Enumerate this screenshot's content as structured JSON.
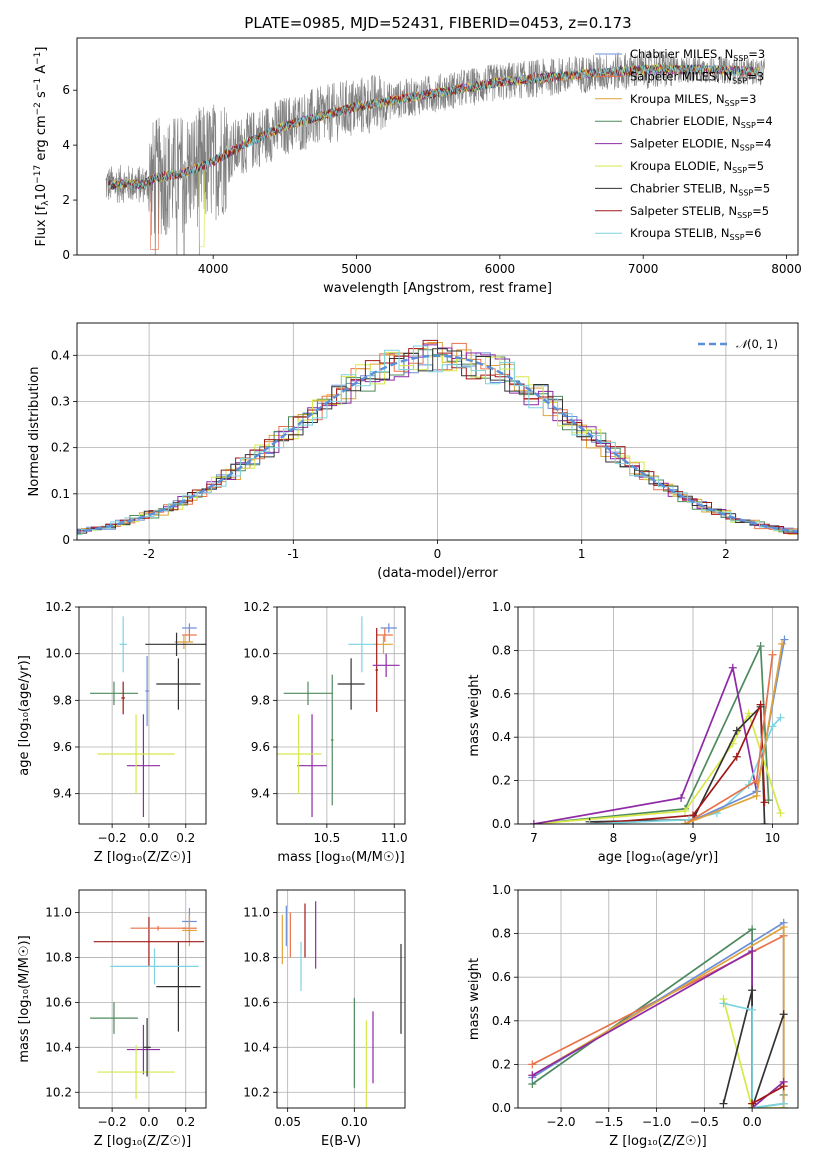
{
  "figure": {
    "title": "PLATE=0985, MJD=52431, FIBERID=0453, z=0.173"
  },
  "colors": {
    "Chabrier MILES": "#6b8fd8",
    "Salpeter MILES": "#e8734a",
    "Kroupa MILES": "#e0a23a",
    "Chabrier ELODIE": "#4e8a5e",
    "Salpeter ELODIE": "#8e2aa5",
    "Kroupa ELODIE": "#d7e84a",
    "Chabrier STELIB": "#333333",
    "Salpeter STELIB": "#a01818",
    "Kroupa STELIB": "#7ed3e0",
    "data": "#808080",
    "gaussian": "#5b8fd9"
  },
  "legend": [
    {
      "prefix": "Chabrier MILES, N",
      "sub": "SSP",
      "suffix": "=3",
      "key": "Chabrier MILES"
    },
    {
      "prefix": "Salpeter MILES, N",
      "sub": "SSP",
      "suffix": "=3",
      "key": "Salpeter MILES"
    },
    {
      "prefix": "Kroupa MILES, N",
      "sub": "SSP",
      "suffix": "=3",
      "key": "Kroupa MILES"
    },
    {
      "prefix": "Chabrier ELODIE, N",
      "sub": "SSP",
      "suffix": "=4",
      "key": "Chabrier ELODIE"
    },
    {
      "prefix": "Salpeter ELODIE, N",
      "sub": "SSP",
      "suffix": "=4",
      "key": "Salpeter ELODIE"
    },
    {
      "prefix": "Kroupa ELODIE, N",
      "sub": "SSP",
      "suffix": "=5",
      "key": "Kroupa ELODIE"
    },
    {
      "prefix": "Chabrier STELIB, N",
      "sub": "SSP",
      "suffix": "=5",
      "key": "Chabrier STELIB"
    },
    {
      "prefix": "Salpeter STELIB, N",
      "sub": "SSP",
      "suffix": "=5",
      "key": "Salpeter STELIB"
    },
    {
      "prefix": "Kroupa STELIB, N",
      "sub": "SSP",
      "suffix": "=6",
      "key": "Kroupa STELIB"
    }
  ],
  "chart_data": [
    {
      "type": "line",
      "id": "spectrum",
      "xlabel": "wavelength [Angstrom, rest frame]",
      "ylabel_prefix": "Flux [f",
      "ylabel_sub": "λ",
      "ylabel_mid": "10",
      "ylabel_sup1": "−17",
      "ylabel_rest": " erg cm",
      "ylabel_sup2": "−2",
      "ylabel_rest2": " s",
      "ylabel_sup3": "−1",
      "ylabel_end": " A",
      "ylabel_sup4": "−1",
      "ylabel_close": "]",
      "xlim": [
        3050,
        8080
      ],
      "ylim": [
        0,
        7.9
      ],
      "xticks": [
        4000,
        5000,
        6000,
        7000,
        8000
      ],
      "yticks": [
        0,
        2,
        4,
        6
      ],
      "x_range": [
        3250,
        7850
      ],
      "continuum": [
        [
          3250,
          2.55
        ],
        [
          3400,
          2.6
        ],
        [
          3500,
          2.55
        ],
        [
          3600,
          2.8
        ],
        [
          3800,
          3.0
        ],
        [
          4000,
          3.4
        ],
        [
          4200,
          4.0
        ],
        [
          4500,
          4.7
        ],
        [
          5000,
          5.4
        ],
        [
          5500,
          5.85
        ],
        [
          6000,
          6.3
        ],
        [
          6500,
          6.55
        ],
        [
          7000,
          6.75
        ],
        [
          7500,
          6.75
        ],
        [
          7850,
          6.65
        ]
      ],
      "legend_loc": "upper right"
    },
    {
      "type": "line",
      "id": "residuals",
      "xlabel": "(data-model)/error",
      "ylabel": "Normed distribution",
      "xlim": [
        -2.5,
        2.5
      ],
      "ylim": [
        0,
        0.47
      ],
      "xticks": [
        -2,
        -1,
        0,
        1,
        2
      ],
      "yticks": [
        0.0,
        0.1,
        0.2,
        0.3,
        0.4
      ],
      "gaussian_label_pre": "𝒩",
      "gaussian_label_args": "(0, 1)",
      "legend_loc": "upper right"
    },
    {
      "type": "scatter",
      "id": "age_vs_Z",
      "xlabel": "Z [log₁₀(Z/Z☉)]",
      "ylabel": "age  [log₁₀(age/yr)]",
      "xlim": [
        -0.38,
        0.31
      ],
      "ylim": [
        9.27,
        10.2
      ],
      "xticks": [
        -0.2,
        0.0,
        0.2
      ],
      "xticklabels": [
        "−0.2",
        "0.0",
        "0.2"
      ],
      "yticks": [
        9.4,
        9.6,
        9.8,
        10.0,
        10.2
      ],
      "yticklabels": [
        "9.4",
        "9.6",
        "9.8",
        "10.0",
        "10.2"
      ],
      "points": [
        {
          "key": "Chabrier MILES",
          "x": 0.22,
          "y": 10.11,
          "xerr": 0.04,
          "yerr": 0.02
        },
        {
          "key": "Salpeter MILES",
          "x": 0.22,
          "y": 10.08,
          "xerr": 0.04,
          "yerr": 0.03
        },
        {
          "key": "Kroupa MILES",
          "x": 0.19,
          "y": 10.05,
          "xerr": 0.05,
          "yerr": 0.03
        },
        {
          "key": "Chabrier ELODIE",
          "x": -0.19,
          "y": 9.83,
          "xerr": 0.13,
          "yerr": 0.05
        },
        {
          "key": "Salpeter ELODIE",
          "x": -0.03,
          "y": 9.52,
          "xerr": 0.09,
          "yerr": 0.22
        },
        {
          "key": "Kroupa ELODIE",
          "x": -0.07,
          "y": 9.57,
          "xerr": 0.21,
          "yerr": 0.17
        },
        {
          "key": "Chabrier STELIB",
          "x": 0.15,
          "y": 10.04,
          "xerr": 0.17,
          "yerr": 0.05
        },
        {
          "key": "Salpeter STELIB",
          "x": -0.14,
          "y": 9.81,
          "xerr": 0.01,
          "yerr": 0.07
        },
        {
          "key": "Kroupa STELIB",
          "x": -0.14,
          "y": 10.04,
          "xerr": 0.02,
          "yerr": 0.12
        },
        {
          "key": "Chabrier STELIB",
          "x": 0.16,
          "y": 9.87,
          "xerr": 0.12,
          "yerr": 0.11
        },
        {
          "key": "Chabrier MILES",
          "x": -0.01,
          "y": 9.84,
          "xerr": 0.01,
          "yerr": 0.15
        }
      ]
    },
    {
      "type": "scatter",
      "id": "age_vs_mass",
      "xlabel": "mass [log₁₀(M/M☉)]",
      "ylabel": "",
      "xlim": [
        10.13,
        11.08
      ],
      "ylim": [
        9.27,
        10.2
      ],
      "xticks": [
        10.5,
        11.0
      ],
      "xticklabels": [
        "10.5",
        "11.0"
      ],
      "yticks": [
        9.4,
        9.6,
        9.8,
        10.0,
        10.2
      ],
      "yticklabels": [
        "9.4",
        "9.6",
        "9.8",
        "10.0",
        "10.2"
      ],
      "points": [
        {
          "key": "Chabrier MILES",
          "x": 10.96,
          "y": 10.11,
          "xerr": 0.06,
          "yerr": 0.02
        },
        {
          "key": "Salpeter MILES",
          "x": 10.93,
          "y": 10.08,
          "xerr": 0.06,
          "yerr": 0.03
        },
        {
          "key": "Kroupa MILES",
          "x": 10.92,
          "y": 10.04,
          "xerr": 0.07,
          "yerr": 0.04
        },
        {
          "key": "Chabrier ELODIE",
          "x": 10.36,
          "y": 9.83,
          "xerr": 0.18,
          "yerr": 0.05
        },
        {
          "key": "Salpeter ELODIE",
          "x": 10.39,
          "y": 9.52,
          "xerr": 0.11,
          "yerr": 0.22
        },
        {
          "key": "Kroupa ELODIE",
          "x": 10.29,
          "y": 9.57,
          "xerr": 0.17,
          "yerr": 0.17
        },
        {
          "key": "Chabrier STELIB",
          "x": 10.68,
          "y": 9.87,
          "xerr": 0.1,
          "yerr": 0.11
        },
        {
          "key": "Salpeter STELIB",
          "x": 10.87,
          "y": 9.93,
          "xerr": 0.01,
          "yerr": 0.18
        },
        {
          "key": "Kroupa STELIB",
          "x": 10.76,
          "y": 10.04,
          "xerr": 0.1,
          "yerr": 0.12
        },
        {
          "key": "Salpeter ELODIE",
          "x": 10.94,
          "y": 9.95,
          "xerr": 0.1,
          "yerr": 0.05
        },
        {
          "key": "Chabrier ELODIE",
          "x": 10.54,
          "y": 9.63,
          "xerr": 0.01,
          "yerr": 0.28
        }
      ]
    },
    {
      "type": "line",
      "id": "mass_weight_vs_age",
      "xlabel": "age  [log₁₀(age/yr)]",
      "ylabel": "mass weight",
      "xlim": [
        6.8,
        10.32
      ],
      "ylim": [
        0,
        1.0
      ],
      "xticks": [
        7,
        8,
        9,
        10
      ],
      "xticklabels": [
        "7",
        "8",
        "9",
        "10"
      ],
      "yticks": [
        0.0,
        0.2,
        0.4,
        0.6,
        0.8,
        1.0
      ],
      "yticklabels": [
        "0.0",
        "0.2",
        "0.4",
        "0.6",
        "0.8",
        "1.0"
      ],
      "series": [
        {
          "key": "Chabrier ELODIE",
          "x": [
            7.0,
            8.9,
            9.85,
            9.95
          ],
          "y": [
            0.0,
            0.07,
            0.82,
            0.11
          ]
        },
        {
          "key": "Kroupa ELODIE",
          "x": [
            7.0,
            8.9,
            9.5,
            9.7,
            10.1
          ],
          "y": [
            0.0,
            0.06,
            0.37,
            0.51,
            0.05
          ]
        },
        {
          "key": "Salpeter ELODIE",
          "x": [
            7.0,
            8.85,
            9.5,
            9.8
          ],
          "y": [
            0.0,
            0.12,
            0.72,
            0.15
          ]
        },
        {
          "key": "Chabrier STELIB",
          "x": [
            7.7,
            9.0,
            9.55,
            9.85,
            9.9
          ],
          "y": [
            0.01,
            0.02,
            0.43,
            0.54,
            0.0
          ]
        },
        {
          "key": "Salpeter STELIB",
          "x": [
            7.7,
            9.0,
            9.55,
            9.85,
            9.9
          ],
          "y": [
            0.0,
            0.04,
            0.31,
            0.55,
            0.1
          ]
        },
        {
          "key": "Kroupa STELIB",
          "x": [
            7.7,
            8.95,
            9.3,
            9.7,
            10.0,
            10.1
          ],
          "y": [
            0.0,
            0.02,
            0.05,
            0.18,
            0.45,
            0.49
          ]
        },
        {
          "key": "Chabrier MILES",
          "x": [
            8.9,
            9.8,
            10.15
          ],
          "y": [
            0.0,
            0.15,
            0.85
          ]
        },
        {
          "key": "Salpeter MILES",
          "x": [
            8.9,
            9.8,
            10.0
          ],
          "y": [
            0.0,
            0.2,
            0.78
          ]
        },
        {
          "key": "Kroupa MILES",
          "x": [
            8.9,
            9.8,
            10.12
          ],
          "y": [
            0.0,
            0.13,
            0.83
          ]
        }
      ]
    },
    {
      "type": "scatter",
      "id": "mass_vs_Z",
      "xlabel": "Z [log₁₀(Z/Z☉)]",
      "ylabel": "mass [log₁₀(M/M☉)]",
      "xlim": [
        -0.38,
        0.31
      ],
      "ylim": [
        10.13,
        11.1
      ],
      "xticks": [
        -0.2,
        0.0,
        0.2
      ],
      "xticklabels": [
        "−0.2",
        "0.0",
        "0.2"
      ],
      "yticks": [
        10.2,
        10.4,
        10.6,
        10.8,
        11.0
      ],
      "yticklabels": [
        "10.2",
        "10.4",
        "10.6",
        "10.8",
        "11.0"
      ],
      "points": [
        {
          "key": "Chabrier MILES",
          "x": 0.22,
          "y": 10.96,
          "xerr": 0.04,
          "yerr": 0.06
        },
        {
          "key": "Salpeter MILES",
          "x": 0.22,
          "y": 10.93,
          "xerr": 0.04,
          "yerr": 0.06
        },
        {
          "key": "Kroupa MILES",
          "x": 0.22,
          "y": 10.92,
          "xerr": 0.04,
          "yerr": 0.07
        },
        {
          "key": "Chabrier ELODIE",
          "x": -0.19,
          "y": 10.53,
          "xerr": 0.13,
          "yerr": 0.07
        },
        {
          "key": "Salpeter ELODIE",
          "x": -0.03,
          "y": 10.39,
          "xerr": 0.09,
          "yerr": 0.11
        },
        {
          "key": "Kroupa ELODIE",
          "x": -0.07,
          "y": 10.29,
          "xerr": 0.21,
          "yerr": 0.12
        },
        {
          "key": "Chabrier STELIB",
          "x": 0.16,
          "y": 10.67,
          "xerr": 0.12,
          "yerr": 0.2
        },
        {
          "key": "Salpeter STELIB",
          "x": 0.0,
          "y": 10.87,
          "xerr": 0.3,
          "yerr": 0.11
        },
        {
          "key": "Kroupa STELIB",
          "x": 0.03,
          "y": 10.76,
          "xerr": 0.24,
          "yerr": 0.08
        },
        {
          "key": "Chabrier STELIB",
          "x": -0.01,
          "y": 10.4,
          "xerr": 0.02,
          "yerr": 0.13
        },
        {
          "key": "Salpeter MILES",
          "x": 0.05,
          "y": 10.93,
          "xerr": 0.15,
          "yerr": 0.01
        }
      ]
    },
    {
      "type": "scatter",
      "id": "mass_vs_ebv",
      "xlabel": "E(B-V)",
      "ylabel": "",
      "xlim": [
        0.042,
        0.138
      ],
      "ylim": [
        10.13,
        11.1
      ],
      "xticks": [
        0.05,
        0.1
      ],
      "xticklabels": [
        "0.05",
        "0.10"
      ],
      "yticks": [
        10.2,
        10.4,
        10.6,
        10.8,
        11.0
      ],
      "yticklabels": [
        "10.2",
        "10.4",
        "10.6",
        "10.8",
        "11.0"
      ],
      "points": [
        {
          "key": "Chabrier MILES",
          "x": 0.049,
          "y": 10.94,
          "xerr": 0.0,
          "yerr": 0.09
        },
        {
          "key": "Salpeter MILES",
          "x": 0.052,
          "y": 10.9,
          "xerr": 0.0,
          "yerr": 0.1
        },
        {
          "key": "Kroupa MILES",
          "x": 0.046,
          "y": 10.88,
          "xerr": 0.0,
          "yerr": 0.11
        },
        {
          "key": "Kroupa STELIB",
          "x": 0.06,
          "y": 10.76,
          "xerr": 0.0,
          "yerr": 0.11
        },
        {
          "key": "Salpeter STELIB",
          "x": 0.063,
          "y": 10.92,
          "xerr": 0.0,
          "yerr": 0.12
        },
        {
          "key": "Chabrier ELODIE",
          "x": 0.1,
          "y": 10.42,
          "xerr": 0.0,
          "yerr": 0.2
        },
        {
          "key": "Kroupa ELODIE",
          "x": 0.109,
          "y": 10.29,
          "xerr": 0.0,
          "yerr": 0.23
        },
        {
          "key": "Salpeter ELODIE",
          "x": 0.114,
          "y": 10.4,
          "xerr": 0.0,
          "yerr": 0.16
        },
        {
          "key": "Chabrier STELIB",
          "x": 0.135,
          "y": 10.66,
          "xerr": 0.0,
          "yerr": 0.2
        },
        {
          "key": "Salpeter ELODIE",
          "x": 0.071,
          "y": 10.9,
          "xerr": 0.0,
          "yerr": 0.15
        }
      ]
    },
    {
      "type": "line",
      "id": "mass_weight_vs_Z",
      "xlabel": "Z [log₁₀(Z/Z☉)]",
      "ylabel": "mass weight",
      "xlim": [
        -2.45,
        0.48
      ],
      "ylim": [
        0,
        1.0
      ],
      "xticks": [
        -2.0,
        -1.5,
        -1.0,
        -0.5,
        0.0
      ],
      "xticklabels": [
        "−2.0",
        "−1.5",
        "−1.0",
        "−0.5",
        "0.0"
      ],
      "yticks": [
        0.0,
        0.2,
        0.4,
        0.6,
        0.8,
        1.0
      ],
      "yticklabels": [
        "0.0",
        "0.2",
        "0.4",
        "0.6",
        "0.8",
        "1.0"
      ],
      "series": [
        {
          "key": "Chabrier ELODIE",
          "x": [
            -2.3,
            0.0,
            0.0,
            0.33,
            0.33
          ],
          "y": [
            0.11,
            0.82,
            0.0,
            0.02,
            0.06
          ]
        },
        {
          "key": "Salpeter MILES",
          "x": [
            -2.3,
            0.33,
            0.33
          ],
          "y": [
            0.2,
            0.79,
            0.0
          ]
        },
        {
          "key": "Chabrier MILES",
          "x": [
            -2.3,
            0.33,
            0.33
          ],
          "y": [
            0.14,
            0.85,
            0.0
          ]
        },
        {
          "key": "Kroupa MILES",
          "x": [
            -2.3,
            0.33,
            0.33
          ],
          "y": [
            0.15,
            0.83,
            0.0
          ]
        },
        {
          "key": "Salpeter ELODIE",
          "x": [
            -2.3,
            0.0,
            0.0,
            0.33
          ],
          "y": [
            0.15,
            0.72,
            0.0,
            0.12
          ]
        },
        {
          "key": "Kroupa ELODIE",
          "x": [
            -0.3,
            0.0,
            0.33
          ],
          "y": [
            0.5,
            0.0,
            0.0
          ]
        },
        {
          "key": "Chabrier STELIB",
          "x": [
            -0.3,
            0.0,
            0.0,
            0.33
          ],
          "y": [
            0.02,
            0.54,
            0.0,
            0.43
          ]
        },
        {
          "key": "Kroupa STELIB",
          "x": [
            -0.3,
            0.0,
            0.0,
            0.33
          ],
          "y": [
            0.48,
            0.45,
            0.0,
            0.02
          ]
        },
        {
          "key": "Salpeter STELIB",
          "x": [
            0.0,
            0.33
          ],
          "y": [
            0.02,
            0.1
          ]
        }
      ]
    }
  ]
}
